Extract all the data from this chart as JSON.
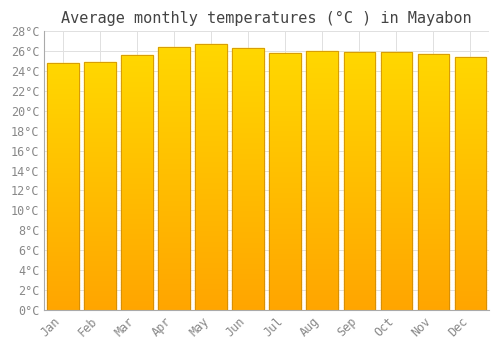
{
  "title": "Average monthly temperatures (°C ) in Mayabon",
  "months": [
    "Jan",
    "Feb",
    "Mar",
    "Apr",
    "May",
    "Jun",
    "Jul",
    "Aug",
    "Sep",
    "Oct",
    "Nov",
    "Dec"
  ],
  "values": [
    24.8,
    24.9,
    25.6,
    26.4,
    26.7,
    26.3,
    25.8,
    26.0,
    25.9,
    25.9,
    25.7,
    25.4
  ],
  "bar_color_bottom": "#FFA500",
  "bar_color_top": "#FFD700",
  "bar_edge_color": "#C8860A",
  "ylim": [
    0,
    28
  ],
  "ytick_step": 2,
  "background_color": "#ffffff",
  "grid_color": "#e0e0e0",
  "title_fontsize": 11,
  "tick_fontsize": 8.5,
  "font_family": "monospace",
  "bar_width": 0.85,
  "n_gradient_steps": 100
}
